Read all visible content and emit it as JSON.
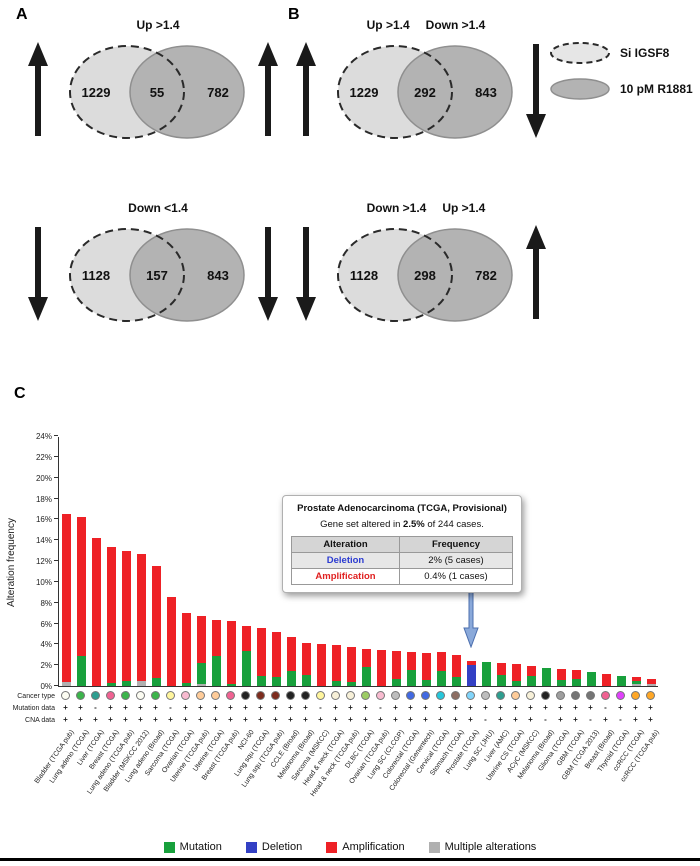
{
  "panels": {
    "a": "A",
    "b": "B",
    "c": "C"
  },
  "legend_sets": [
    {
      "label": "Si IGSF8"
    },
    {
      "label": "10 pM R1881"
    }
  ],
  "venns": [
    {
      "titles": [
        "Up >1.4"
      ],
      "left_count": "1229",
      "overlap_count": "55",
      "right_count": "782",
      "arrows": [
        "up",
        "up"
      ]
    },
    {
      "titles": [
        "Down <1.4"
      ],
      "left_count": "1128",
      "overlap_count": "157",
      "right_count": "843",
      "arrows": [
        "down",
        "down"
      ]
    },
    {
      "titles": [
        "Up >1.4",
        "Down >1.4"
      ],
      "left_count": "1229",
      "overlap_count": "292",
      "right_count": "843",
      "arrows": [
        "up",
        "down"
      ]
    },
    {
      "titles": [
        "Down >1.4",
        "Up >1.4"
      ],
      "left_count": "1128",
      "overlap_count": "298",
      "right_count": "782",
      "arrows": [
        "down",
        "up"
      ]
    }
  ],
  "tooltip": {
    "title": "Prostate Adenocarcinoma (TCGA, Provisional)",
    "body_prefix": "Gene set altered in ",
    "body_bold": "2.5%",
    "body_suffix": " of 244 cases.",
    "table": {
      "headers": [
        "Alteration",
        "Frequency"
      ],
      "rows": [
        {
          "alteration": "Deletion",
          "frequency": "2% (5 cases)",
          "color": "#2b3bd1"
        },
        {
          "alteration": "Amplification",
          "frequency": "0.4% (1 cases)",
          "color": "#e02020"
        }
      ]
    }
  },
  "chart_data": {
    "type": "bar",
    "stacked": true,
    "ylabel": "Alteration frequency",
    "ylim": [
      0,
      24
    ],
    "ytick_step": 2,
    "grid": false,
    "row_labels": [
      "Cancer type",
      "Mutation data",
      "CNA data"
    ],
    "segment_order": [
      "multiple",
      "mutation",
      "deletion",
      "amplification"
    ],
    "segment_colors": {
      "mutation": "#18a03c",
      "deletion": "#3340c4",
      "amplification": "#ee2126",
      "multiple": "#b0b0b0"
    },
    "highlight_index": 27,
    "highlight_arrow": {
      "fill": "#8aa9da",
      "stroke": "#4c6fae"
    },
    "bars": [
      {
        "label": "Bladder (TCGA pub)",
        "dot_color": "#fcfcf2",
        "mutation": 0,
        "deletion": 0,
        "amplification": 16.1,
        "multiple": 0.4,
        "mutation_data": "+",
        "cna_data": "+"
      },
      {
        "label": "Lung adeno (TCGA)",
        "dot_color": "#3cb44b",
        "mutation": 2.9,
        "deletion": 0,
        "amplification": 13.3,
        "multiple": 0,
        "mutation_data": "+",
        "cna_data": "+"
      },
      {
        "label": "Liver (TCGA)",
        "dot_color": "#2e9e8f",
        "mutation": 0,
        "deletion": 0,
        "amplification": 14.2,
        "multiple": 0,
        "mutation_data": "-",
        "cna_data": "+"
      },
      {
        "label": "Breast (TCGA)",
        "dot_color": "#f06292",
        "mutation": 0.3,
        "deletion": 0,
        "amplification": 13.0,
        "multiple": 0,
        "mutation_data": "+",
        "cna_data": "+"
      },
      {
        "label": "Lung adeno (TCGA pub)",
        "dot_color": "#3cb44b",
        "mutation": 0.5,
        "deletion": 0,
        "amplification": 12.5,
        "multiple": 0,
        "mutation_data": "+",
        "cna_data": "+"
      },
      {
        "label": "Bladder (MSKCC 2012)",
        "dot_color": "#fcfcf2",
        "mutation": 0,
        "deletion": 0,
        "amplification": 12.2,
        "multiple": 0.5,
        "mutation_data": "+",
        "cna_data": "+"
      },
      {
        "label": "Lung adeno (Broad)",
        "dot_color": "#3cb44b",
        "mutation": 0.8,
        "deletion": 0,
        "amplification": 10.7,
        "multiple": 0,
        "mutation_data": "+",
        "cna_data": "+"
      },
      {
        "label": "Sarcoma (TCGA)",
        "dot_color": "#fff59d",
        "mutation": 0,
        "deletion": 0,
        "amplification": 8.5,
        "multiple": 0,
        "mutation_data": "-",
        "cna_data": "+"
      },
      {
        "label": "Ovarian (TCGA)",
        "dot_color": "#f8bbd0",
        "mutation": 0.3,
        "deletion": 0,
        "amplification": 6.7,
        "multiple": 0,
        "mutation_data": "+",
        "cna_data": "+"
      },
      {
        "label": "Uterine (TCGA pub)",
        "dot_color": "#ffcc99",
        "mutation": 2.0,
        "deletion": 0,
        "amplification": 4.5,
        "multiple": 0.2,
        "mutation_data": "+",
        "cna_data": "+"
      },
      {
        "label": "Uterine (TCGA)",
        "dot_color": "#ffcc99",
        "mutation": 2.9,
        "deletion": 0,
        "amplification": 3.4,
        "multiple": 0,
        "mutation_data": "+",
        "cna_data": "+"
      },
      {
        "label": "Breast (TCGA pub)",
        "dot_color": "#f06292",
        "mutation": 0.2,
        "deletion": 0,
        "amplification": 6.0,
        "multiple": 0,
        "mutation_data": "+",
        "cna_data": "+"
      },
      {
        "label": "NCI-60",
        "dot_color": "#222222",
        "mutation": 3.4,
        "deletion": 0,
        "amplification": 2.4,
        "multiple": 0,
        "mutation_data": "+",
        "cna_data": "+"
      },
      {
        "label": "Lung squ (TCGA)",
        "dot_color": "#7d2c1e",
        "mutation": 1.0,
        "deletion": 0,
        "amplification": 4.6,
        "multiple": 0,
        "mutation_data": "+",
        "cna_data": "+"
      },
      {
        "label": "Lung squ (TCGA pub)",
        "dot_color": "#7d2c1e",
        "mutation": 0.9,
        "deletion": 0,
        "amplification": 4.3,
        "multiple": 0,
        "mutation_data": "+",
        "cna_data": "+"
      },
      {
        "label": "CCLE (Broad)",
        "dot_color": "#222222",
        "mutation": 1.4,
        "deletion": 0,
        "amplification": 3.3,
        "multiple": 0,
        "mutation_data": "+",
        "cna_data": "+"
      },
      {
        "label": "Melanoma (Broad)",
        "dot_color": "#222222",
        "mutation": 1.1,
        "deletion": 0,
        "amplification": 3.0,
        "multiple": 0,
        "mutation_data": "+",
        "cna_data": "+"
      },
      {
        "label": "Sarcoma (MSKCC)",
        "dot_color": "#fff59d",
        "mutation": 0,
        "deletion": 0,
        "amplification": 4.0,
        "multiple": 0,
        "mutation_data": "-",
        "cna_data": "+"
      },
      {
        "label": "Head & neck (TCGA)",
        "dot_color": "#f7f0d8",
        "mutation": 0.5,
        "deletion": 0,
        "amplification": 3.4,
        "multiple": 0,
        "mutation_data": "+",
        "cna_data": "+"
      },
      {
        "label": "Head & neck (TCGA pub)",
        "dot_color": "#f7f0d8",
        "mutation": 0.4,
        "deletion": 0,
        "amplification": 3.3,
        "multiple": 0,
        "mutation_data": "+",
        "cna_data": "+"
      },
      {
        "label": "DLBC (TCGA)",
        "dot_color": "#9ccc65",
        "mutation": 1.8,
        "deletion": 0,
        "amplification": 1.8,
        "multiple": 0,
        "mutation_data": "+",
        "cna_data": "+"
      },
      {
        "label": "Ovarian (TCGA pub)",
        "dot_color": "#f8bbd0",
        "mutation": 0,
        "deletion": 0,
        "amplification": 3.5,
        "multiple": 0,
        "mutation_data": "-",
        "cna_data": "+"
      },
      {
        "label": "Lung SC (CLCGP)",
        "dot_color": "#bdbdbd",
        "mutation": 0.7,
        "deletion": 0,
        "amplification": 2.7,
        "multiple": 0,
        "mutation_data": "+",
        "cna_data": "+"
      },
      {
        "label": "Colorectal (TCGA)",
        "dot_color": "#4169e1",
        "mutation": 1.5,
        "deletion": 0,
        "amplification": 1.8,
        "multiple": 0,
        "mutation_data": "+",
        "cna_data": "+"
      },
      {
        "label": "Colorectal (Genentech)",
        "dot_color": "#4169e1",
        "mutation": 0.6,
        "deletion": 0,
        "amplification": 2.6,
        "multiple": 0,
        "mutation_data": "+",
        "cna_data": "+"
      },
      {
        "label": "Cervical (TCGA)",
        "dot_color": "#26c6da",
        "mutation": 1.4,
        "deletion": 0,
        "amplification": 1.9,
        "multiple": 0,
        "mutation_data": "+",
        "cna_data": "+"
      },
      {
        "label": "Stomach (TCGA)",
        "dot_color": "#8d6e63",
        "mutation": 0.9,
        "deletion": 0,
        "amplification": 2.1,
        "multiple": 0,
        "mutation_data": "+",
        "cna_data": "+"
      },
      {
        "label": "Prostate (TCGA)",
        "dot_color": "#81d4fa",
        "mutation": 0,
        "deletion": 2.0,
        "amplification": 0.4,
        "multiple": 0,
        "mutation_data": "+",
        "cna_data": "+"
      },
      {
        "label": "Lung SC (JHU)",
        "dot_color": "#bdbdbd",
        "mutation": 2.3,
        "deletion": 0,
        "amplification": 0,
        "multiple": 0,
        "mutation_data": "+",
        "cna_data": "-"
      },
      {
        "label": "Liver (AMC)",
        "dot_color": "#2e9e8f",
        "mutation": 1.1,
        "deletion": 0,
        "amplification": 1.1,
        "multiple": 0,
        "mutation_data": "+",
        "cna_data": "+"
      },
      {
        "label": "Uterine CS (TCGA)",
        "dot_color": "#ffcc99",
        "mutation": 0.5,
        "deletion": 0,
        "amplification": 1.6,
        "multiple": 0,
        "mutation_data": "+",
        "cna_data": "+"
      },
      {
        "label": "ACyC (MSKCC)",
        "dot_color": "#f7f0d8",
        "mutation": 1.0,
        "deletion": 0,
        "amplification": 0.9,
        "multiple": 0,
        "mutation_data": "+",
        "cna_data": "+"
      },
      {
        "label": "Melanoma (Broad)",
        "dot_color": "#222222",
        "mutation": 1.7,
        "deletion": 0,
        "amplification": 0,
        "multiple": 0,
        "mutation_data": "+",
        "cna_data": "-"
      },
      {
        "label": "Glioma (TCGA)",
        "dot_color": "#9e9e9e",
        "mutation": 0.6,
        "deletion": 0,
        "amplification": 1.0,
        "multiple": 0,
        "mutation_data": "+",
        "cna_data": "+"
      },
      {
        "label": "GBM (TCGA)",
        "dot_color": "#757575",
        "mutation": 0.7,
        "deletion": 0,
        "amplification": 0.8,
        "multiple": 0,
        "mutation_data": "+",
        "cna_data": "+"
      },
      {
        "label": "GBM (TCGA 2013)",
        "dot_color": "#757575",
        "mutation": 1.3,
        "deletion": 0,
        "amplification": 0,
        "multiple": 0,
        "mutation_data": "+",
        "cna_data": "-"
      },
      {
        "label": "Breast (Broad)",
        "dot_color": "#f06292",
        "mutation": 0,
        "deletion": 0,
        "amplification": 1.2,
        "multiple": 0,
        "mutation_data": "-",
        "cna_data": "+"
      },
      {
        "label": "Thyroid (TCGA)",
        "dot_color": "#e040fb",
        "mutation": 1.0,
        "deletion": 0,
        "amplification": 0,
        "multiple": 0,
        "mutation_data": "+",
        "cna_data": "-"
      },
      {
        "label": "ccRCC (TCGA)",
        "dot_color": "#ffa726",
        "mutation": 0.3,
        "deletion": 0,
        "amplification": 0.4,
        "multiple": 0.2,
        "mutation_data": "+",
        "cna_data": "+"
      },
      {
        "label": "ccRCC (TCGA pub)",
        "dot_color": "#ffa726",
        "mutation": 0,
        "deletion": 0,
        "amplification": 0.5,
        "multiple": 0.2,
        "mutation_data": "+",
        "cna_data": "+"
      }
    ]
  },
  "bottom_legend": [
    {
      "label": "Mutation",
      "color": "#18a03c"
    },
    {
      "label": "Deletion",
      "color": "#3340c4"
    },
    {
      "label": "Amplification",
      "color": "#ee2126"
    },
    {
      "label": "Multiple alterations",
      "color": "#b0b0b0"
    }
  ]
}
